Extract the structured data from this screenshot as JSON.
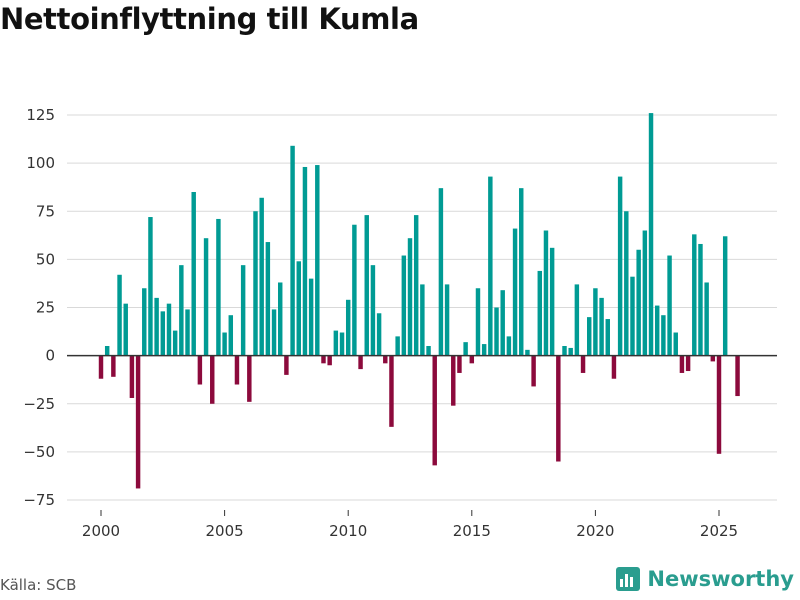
{
  "chart_data": {
    "type": "bar",
    "title": "Nettoinflyttning till Kumla",
    "xlabel": "",
    "ylabel": "",
    "xlim": [
      1999.0,
      2027.2
    ],
    "ylim": [
      -75,
      130
    ],
    "x_ticks": [
      2000,
      2005,
      2010,
      2015,
      2020,
      2025
    ],
    "y_ticks": [
      125,
      100,
      75,
      50,
      25,
      0,
      -25,
      -50,
      -75
    ],
    "grid": true,
    "positive_color": "#009b94",
    "negative_color": "#8c0a3c",
    "series": [
      {
        "name": "Nettoinflyttning",
        "start": 2000.0,
        "step": 0.25,
        "values": [
          -12,
          5,
          -11,
          42,
          27,
          -22,
          -69,
          35,
          72,
          30,
          23,
          27,
          13,
          47,
          24,
          85,
          -15,
          61,
          -25,
          71,
          12,
          21,
          -15,
          47,
          -24,
          75,
          82,
          59,
          24,
          38,
          -10,
          109,
          49,
          98,
          40,
          99,
          -4,
          -5,
          13,
          12,
          29,
          68,
          -7,
          73,
          47,
          22,
          -4,
          -37,
          10,
          52,
          61,
          73,
          37,
          5,
          -57,
          87,
          37,
          -26,
          -9,
          7,
          -4,
          35,
          6,
          93,
          25,
          34,
          10,
          66,
          87,
          3,
          -16,
          44,
          65,
          56,
          -55,
          5,
          4,
          37,
          -9,
          20,
          35,
          30,
          19,
          -12,
          93,
          75,
          41,
          55,
          65,
          126,
          26,
          21,
          52,
          12,
          -9,
          -8,
          63,
          58,
          38,
          -3,
          -51,
          62,
          null,
          -21
        ]
      }
    ]
  },
  "source": "Källa: SCB",
  "brand": "Newsworthy",
  "icons": {
    "brand": "newsworthy-logo-icon"
  },
  "colors": {
    "accent": "#2a9d8f"
  }
}
